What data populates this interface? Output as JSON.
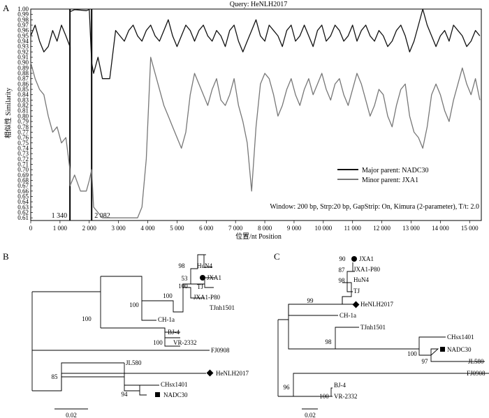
{
  "figure": {
    "panel_a": "A",
    "panel_b": "B",
    "panel_c": "C"
  },
  "chart_data": [
    {
      "type": "line",
      "panel": "A",
      "title": "Query: HeNLH2017",
      "xlabel": "位置/nt  Position",
      "ylabel": "相似性  Similarity",
      "xlim": [
        0,
        15400
      ],
      "ylim": [
        0.605,
        1.0
      ],
      "xticks": [
        0,
        1000,
        2000,
        3000,
        4000,
        5000,
        6000,
        7000,
        8000,
        9000,
        10000,
        11000,
        12000,
        13000,
        14000,
        15000
      ],
      "xtick_labels": [
        "0",
        "1 000",
        "2 000",
        "3 000",
        "4 000",
        "5 000",
        "6 000",
        "7 000",
        "8 000",
        "9 000",
        "10 000",
        "11 000",
        "12 000",
        "13 000",
        "14 000",
        "15 000"
      ],
      "yticks": [
        0.61,
        0.62,
        0.63,
        0.64,
        0.65,
        0.66,
        0.67,
        0.68,
        0.69,
        0.7,
        0.71,
        0.72,
        0.73,
        0.74,
        0.75,
        0.76,
        0.77,
        0.78,
        0.79,
        0.8,
        0.81,
        0.82,
        0.83,
        0.84,
        0.85,
        0.86,
        0.87,
        0.88,
        0.89,
        0.9,
        0.91,
        0.92,
        0.93,
        0.94,
        0.95,
        0.96,
        0.97,
        0.98,
        0.99,
        1.0
      ],
      "breakpoints": [
        1340,
        2082
      ],
      "breakpoint_labels": [
        "1 340",
        "2 082"
      ],
      "legend_position": "bottom-right",
      "annotation": "Window: 200 bp, Strp:20 bp, GapStrip: On, Kimura (2-parameter), T/t: 2.0",
      "series": [
        {
          "name": "Major parent: NADC30",
          "color": "#111111",
          "x": [
            0,
            150,
            300,
            450,
            600,
            750,
            900,
            1050,
            1200,
            1340,
            1345,
            1500,
            1700,
            1900,
            2000,
            2082,
            2150,
            2300,
            2450,
            2600,
            2700,
            2900,
            3050,
            3200,
            3350,
            3500,
            3650,
            3800,
            3950,
            4100,
            4250,
            4400,
            4550,
            4700,
            4850,
            5000,
            5150,
            5300,
            5450,
            5600,
            5750,
            5900,
            6050,
            6200,
            6350,
            6500,
            6650,
            6800,
            6950,
            7100,
            7250,
            7400,
            7550,
            7700,
            7850,
            8000,
            8150,
            8300,
            8450,
            8600,
            8750,
            8900,
            9050,
            9200,
            9350,
            9500,
            9650,
            9800,
            9950,
            10100,
            10250,
            10400,
            10550,
            10700,
            10850,
            11000,
            11150,
            11300,
            11450,
            11600,
            11750,
            11900,
            12050,
            12200,
            12350,
            12500,
            12650,
            12800,
            12950,
            13100,
            13250,
            13400,
            13550,
            13700,
            13850,
            14000,
            14150,
            14300,
            14450,
            14600,
            14750,
            14900,
            15050,
            15200,
            15350
          ],
          "y": [
            0.95,
            0.97,
            0.94,
            0.92,
            0.93,
            0.96,
            0.94,
            0.97,
            0.95,
            0.93,
            0.995,
            0.999,
            0.998,
            0.997,
            0.999,
            0.9,
            0.88,
            0.91,
            0.87,
            0.87,
            0.87,
            0.96,
            0.95,
            0.94,
            0.96,
            0.97,
            0.95,
            0.94,
            0.96,
            0.97,
            0.95,
            0.94,
            0.96,
            0.98,
            0.95,
            0.93,
            0.95,
            0.97,
            0.96,
            0.94,
            0.96,
            0.97,
            0.95,
            0.94,
            0.96,
            0.95,
            0.93,
            0.96,
            0.97,
            0.94,
            0.92,
            0.94,
            0.96,
            0.98,
            0.95,
            0.94,
            0.97,
            0.96,
            0.95,
            0.93,
            0.96,
            0.97,
            0.94,
            0.95,
            0.97,
            0.95,
            0.93,
            0.96,
            0.97,
            0.94,
            0.95,
            0.97,
            0.96,
            0.94,
            0.95,
            0.97,
            0.94,
            0.96,
            0.97,
            0.95,
            0.94,
            0.96,
            0.95,
            0.93,
            0.94,
            0.96,
            0.97,
            0.95,
            0.92,
            0.94,
            0.97,
            1.0,
            0.97,
            0.95,
            0.93,
            0.95,
            0.96,
            0.94,
            0.97,
            0.96,
            0.95,
            0.93,
            0.94,
            0.96,
            0.95
          ]
        },
        {
          "name": "Minor parent: JXA1",
          "color": "#777777",
          "x": [
            0,
            150,
            300,
            450,
            600,
            750,
            900,
            1050,
            1200,
            1340,
            1345,
            1500,
            1700,
            1900,
            2000,
            2082,
            2150,
            2300,
            2450,
            2600,
            2750,
            2900,
            3050,
            3200,
            3350,
            3500,
            3650,
            3800,
            3950,
            4100,
            4250,
            4400,
            4550,
            4700,
            4850,
            5000,
            5150,
            5300,
            5450,
            5600,
            5750,
            5900,
            6050,
            6200,
            6350,
            6500,
            6650,
            6800,
            6950,
            7100,
            7250,
            7400,
            7550,
            7700,
            7850,
            8000,
            8150,
            8300,
            8450,
            8600,
            8750,
            8900,
            9050,
            9200,
            9350,
            9500,
            9650,
            9800,
            9950,
            10100,
            10250,
            10400,
            10550,
            10700,
            10850,
            11000,
            11150,
            11300,
            11450,
            11600,
            11750,
            11900,
            12050,
            12200,
            12350,
            12500,
            12650,
            12800,
            12950,
            13100,
            13250,
            13400,
            13550,
            13700,
            13850,
            14000,
            14150,
            14300,
            14450,
            14600,
            14750,
            14900,
            15050,
            15200,
            15350
          ],
          "y": [
            0.9,
            0.87,
            0.85,
            0.84,
            0.8,
            0.77,
            0.78,
            0.75,
            0.76,
            0.7,
            0.67,
            0.69,
            0.66,
            0.66,
            0.68,
            0.7,
            0.63,
            0.62,
            0.61,
            0.61,
            0.61,
            0.61,
            0.61,
            0.61,
            0.61,
            0.61,
            0.61,
            0.63,
            0.72,
            0.91,
            0.88,
            0.85,
            0.82,
            0.8,
            0.78,
            0.76,
            0.74,
            0.77,
            0.84,
            0.88,
            0.86,
            0.84,
            0.82,
            0.85,
            0.87,
            0.83,
            0.82,
            0.84,
            0.87,
            0.82,
            0.79,
            0.75,
            0.66,
            0.78,
            0.86,
            0.88,
            0.87,
            0.84,
            0.8,
            0.82,
            0.85,
            0.87,
            0.84,
            0.82,
            0.85,
            0.87,
            0.84,
            0.86,
            0.88,
            0.85,
            0.83,
            0.86,
            0.87,
            0.84,
            0.82,
            0.85,
            0.88,
            0.86,
            0.83,
            0.8,
            0.82,
            0.85,
            0.84,
            0.8,
            0.78,
            0.82,
            0.85,
            0.86,
            0.8,
            0.77,
            0.76,
            0.74,
            0.78,
            0.84,
            0.86,
            0.84,
            0.81,
            0.79,
            0.83,
            0.86,
            0.89,
            0.86,
            0.84,
            0.87,
            0.83
          ]
        }
      ]
    },
    {
      "type": "diagram",
      "panel": "B",
      "scale_bar": "0.02",
      "taxa": [
        "HuN4",
        "JXA1",
        "TJ",
        "JXA1-P80",
        "TJnh1501",
        "CH-1a",
        "BJ-4",
        "VR-2332",
        "FJ0908",
        "JL580",
        "HeNLH2017",
        "CHsx1401",
        "NADC30"
      ],
      "bootstrap_values": [
        "98",
        "53",
        "100",
        "100",
        "100",
        "100",
        "85",
        "100",
        "94"
      ],
      "markers": {
        "circle": "JXA1",
        "square": "NADC30",
        "diamond": "HeNLH2017"
      }
    },
    {
      "type": "diagram",
      "panel": "C",
      "scale_bar": "0.02",
      "taxa": [
        "JXA1",
        "JXA1-P80",
        "HuN4",
        "TJ",
        "HeNLH2017",
        "CH-1a",
        "TJnh1501",
        "CHsx1401",
        "NADC30",
        "JL580",
        "FJ0908",
        "BJ-4",
        "VR-2332"
      ],
      "bootstrap_values": [
        "90",
        "87",
        "98",
        "99",
        "98",
        "100",
        "97",
        "96",
        "100"
      ],
      "markers": {
        "circle": "JXA1",
        "square": "NADC30",
        "diamond": "HeNLH2017"
      }
    }
  ]
}
